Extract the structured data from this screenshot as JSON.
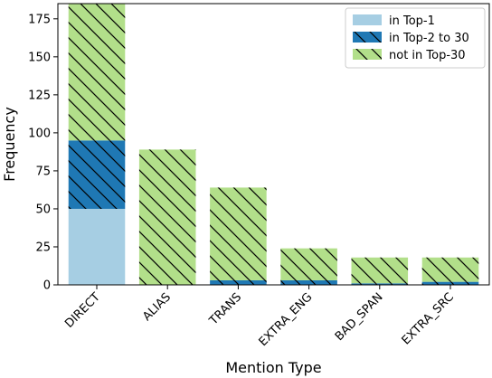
{
  "chart_data": {
    "type": "bar",
    "stacked": true,
    "categories": [
      "DIRECT",
      "ALIAS",
      "TRANS",
      "EXTRA_ENG",
      "BAD_SPAN",
      "EXTRA_SRC"
    ],
    "series": [
      {
        "name": "in Top-1",
        "values": [
          50,
          0,
          0,
          0,
          0,
          0
        ],
        "color": "#a6cee3",
        "hatch": "none"
      },
      {
        "name": "in Top-2 to 30",
        "values": [
          45,
          0,
          3,
          3,
          1,
          2
        ],
        "color": "#1f78b4",
        "hatch": "diagonal"
      },
      {
        "name": "not in Top-30",
        "values": [
          90,
          89,
          61,
          21,
          17,
          16
        ],
        "color": "#b2df8a",
        "hatch": "diagonal"
      }
    ],
    "xlabel": "Mention Type",
    "ylabel": "Frequency",
    "ylim": [
      0,
      185
    ],
    "yticks": [
      0,
      25,
      50,
      75,
      100,
      125,
      150,
      175
    ],
    "grid": false,
    "legend_position": "top-right"
  }
}
